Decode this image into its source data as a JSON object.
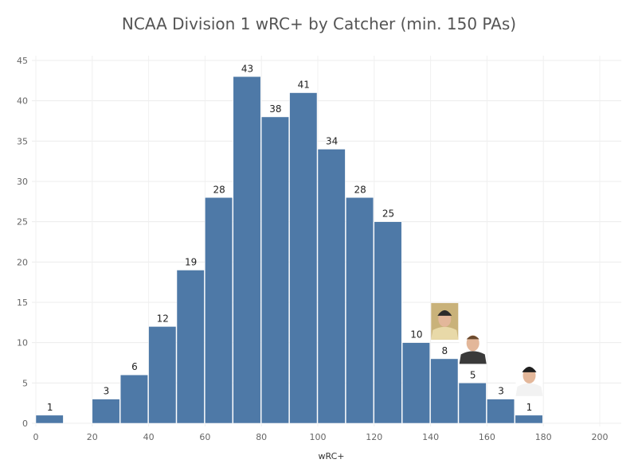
{
  "chart_data": {
    "type": "bar",
    "title": "NCAA Division 1 wRC+ by Catcher (min. 150 PAs)",
    "xlabel": "wRC+",
    "ylabel": "",
    "bin_width": 10,
    "x": [
      0,
      10,
      20,
      30,
      40,
      50,
      60,
      70,
      80,
      90,
      100,
      110,
      120,
      130,
      140,
      150,
      160,
      170,
      180,
      190
    ],
    "values": [
      1,
      0,
      3,
      6,
      12,
      19,
      28,
      43,
      38,
      41,
      34,
      28,
      25,
      10,
      8,
      5,
      3,
      1,
      null,
      null
    ],
    "bins": [
      {
        "x": 0,
        "value": 1
      },
      {
        "x": 20,
        "value": 3
      },
      {
        "x": 30,
        "value": 6
      },
      {
        "x": 40,
        "value": 12
      },
      {
        "x": 50,
        "value": 19
      },
      {
        "x": 60,
        "value": 28
      },
      {
        "x": 70,
        "value": 43
      },
      {
        "x": 80,
        "value": 38
      },
      {
        "x": 90,
        "value": 41
      },
      {
        "x": 100,
        "value": 34
      },
      {
        "x": 110,
        "value": 28
      },
      {
        "x": 120,
        "value": 25
      },
      {
        "x": 130,
        "value": 10
      },
      {
        "x": 140,
        "value": 8
      },
      {
        "x": 150,
        "value": 5
      },
      {
        "x": 160,
        "value": 3
      },
      {
        "x": 170,
        "value": 1
      }
    ],
    "xlim": [
      0,
      200
    ],
    "ylim": [
      0,
      45
    ],
    "xticks": [
      "0",
      "20",
      "40",
      "60",
      "80",
      "100",
      "120",
      "140",
      "160",
      "180",
      "200"
    ],
    "yticks": [
      "0",
      "5",
      "10",
      "15",
      "20",
      "25",
      "30",
      "35",
      "40",
      "45"
    ],
    "grid": true,
    "bar_color": "#4e79a7",
    "player_photos": [
      "player-photo-1",
      "player-photo-2",
      "player-photo-3"
    ]
  }
}
